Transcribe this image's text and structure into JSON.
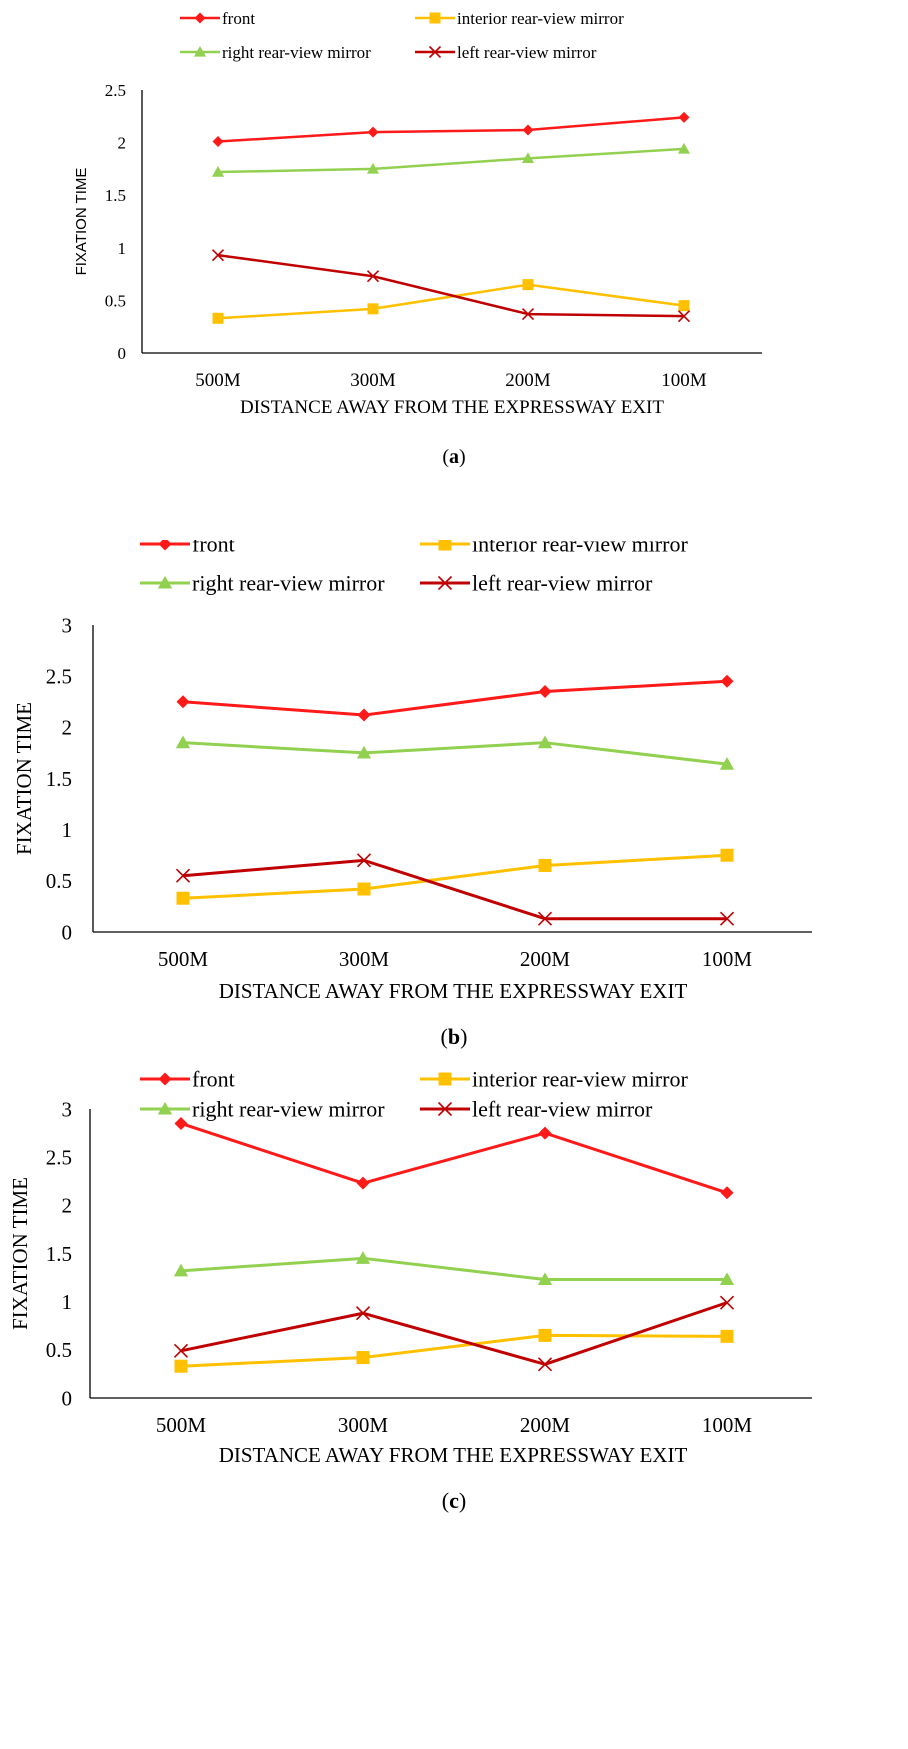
{
  "chart_data": [
    {
      "type": "line",
      "title": "",
      "caption": "(a)",
      "caption_bold": "a",
      "categories": [
        "500M",
        "300M",
        "200M",
        "100M"
      ],
      "xlabel": "DISTANCE AWAY FROM THE EXPRESSWAY EXIT",
      "ylabel": "FIXATION TIME",
      "ylim": [
        0,
        2.5
      ],
      "yticks": [
        "0",
        "0.5",
        "1",
        "1.5",
        "2",
        "2.5"
      ],
      "grid": false,
      "legend_position": "top",
      "series": [
        {
          "name": "front",
          "marker": "diamond",
          "color": "#ff1a1a",
          "values": [
            2.01,
            2.1,
            2.12,
            2.24
          ]
        },
        {
          "name": "interior rear-view mirror",
          "marker": "square",
          "color": "#ffc000",
          "values": [
            0.33,
            0.42,
            0.65,
            0.45
          ]
        },
        {
          "name": "right rear-view mirror",
          "marker": "triangle",
          "color": "#92d050",
          "values": [
            1.72,
            1.75,
            1.85,
            1.94
          ]
        },
        {
          "name": "left rear-view mirror",
          "marker": "x",
          "color": "#c00000",
          "values": [
            0.93,
            0.73,
            0.37,
            0.35
          ]
        }
      ]
    },
    {
      "type": "line",
      "title": "",
      "caption": "(b)",
      "caption_bold": "b",
      "categories": [
        "500M",
        "300M",
        "200M",
        "100M"
      ],
      "xlabel": "DISTANCE AWAY FROM THE EXPRESSWAY EXIT",
      "ylabel": "FIXATION TIME",
      "ylim": [
        0,
        3
      ],
      "yticks": [
        "0",
        "0.5",
        "1",
        "1.5",
        "2",
        "2.5",
        "3"
      ],
      "grid": false,
      "legend_position": "top",
      "series": [
        {
          "name": "front",
          "marker": "diamond",
          "color": "#ff1a1a",
          "values": [
            2.25,
            2.12,
            2.35,
            2.45
          ]
        },
        {
          "name": "interior rear-view mirror",
          "marker": "square",
          "color": "#ffc000",
          "values": [
            0.33,
            0.42,
            0.65,
            0.75
          ]
        },
        {
          "name": "right rear-view mirror",
          "marker": "triangle",
          "color": "#92d050",
          "values": [
            1.85,
            1.75,
            1.85,
            1.64
          ]
        },
        {
          "name": "left rear-view mirror",
          "marker": "x",
          "color": "#c00000",
          "values": [
            0.55,
            0.7,
            0.13,
            0.13
          ]
        }
      ]
    },
    {
      "type": "line",
      "title": "",
      "caption": "(c)",
      "caption_bold": "c",
      "categories": [
        "500M",
        "300M",
        "200M",
        "100M"
      ],
      "xlabel": "DISTANCE AWAY FROM THE EXPRESSWAY EXIT",
      "ylabel": "FIXATION TIME",
      "ylim": [
        0,
        3
      ],
      "yticks": [
        "0",
        "0.5",
        "1",
        "1.5",
        "2",
        "2.5",
        "3"
      ],
      "grid": false,
      "legend_position": "top",
      "series": [
        {
          "name": "front",
          "marker": "diamond",
          "color": "#ff1a1a",
          "values": [
            2.85,
            2.23,
            2.75,
            2.13
          ]
        },
        {
          "name": "interior rear-view mirror",
          "marker": "square",
          "color": "#ffc000",
          "values": [
            0.33,
            0.42,
            0.65,
            0.64
          ]
        },
        {
          "name": "right rear-view mirror",
          "marker": "triangle",
          "color": "#92d050",
          "values": [
            1.32,
            1.45,
            1.23,
            1.23
          ]
        },
        {
          "name": "left rear-view mirror",
          "marker": "x",
          "color": "#c00000",
          "values": [
            0.49,
            0.88,
            0.35,
            0.99
          ]
        }
      ]
    }
  ]
}
